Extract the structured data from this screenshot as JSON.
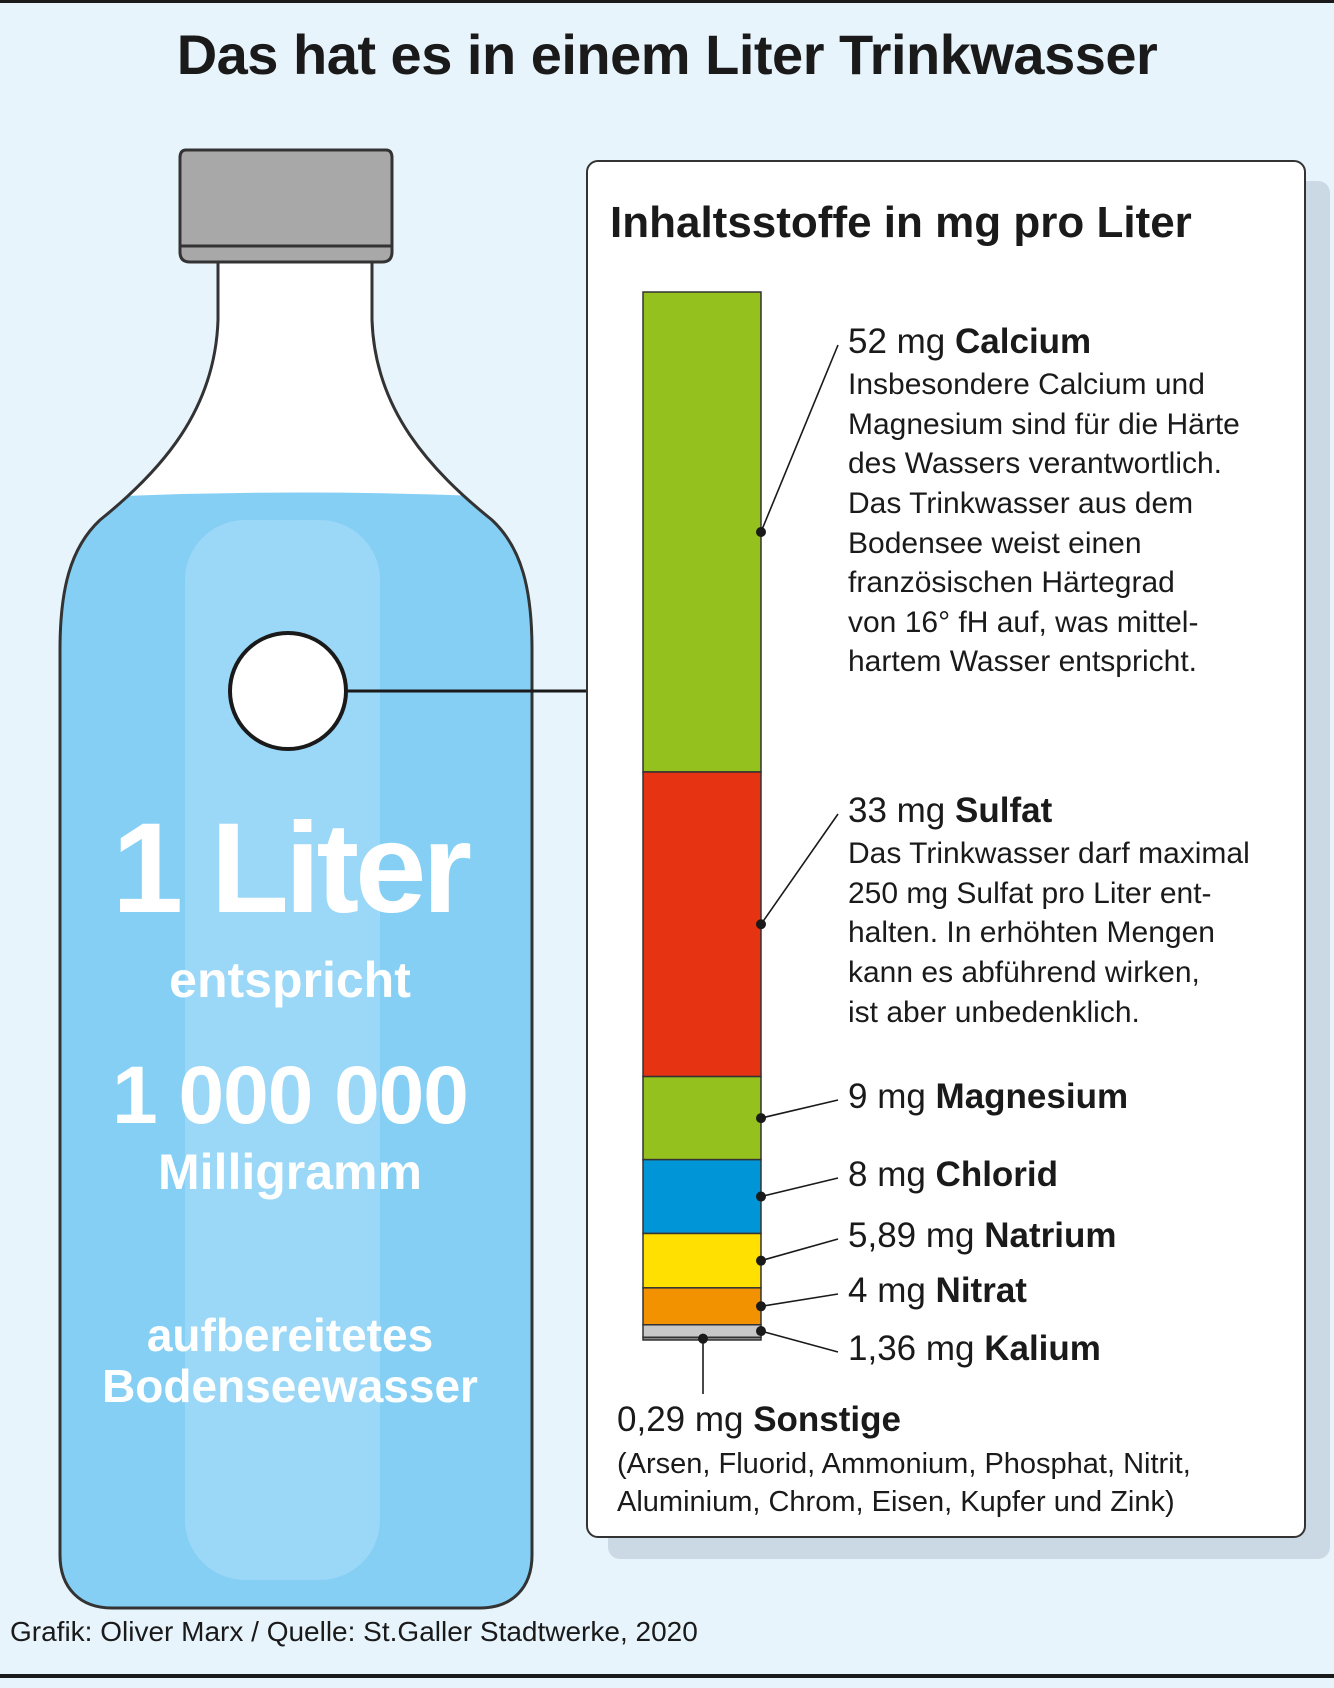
{
  "title": "Das hat es in einem Liter Trinkwasser",
  "bottle": {
    "line1": "1 Liter",
    "line2": "entspricht",
    "line3": "1 000 000",
    "line4": "Milligramm",
    "line5a": "aufbereitetes",
    "line5b": "Bodenseewasser"
  },
  "panel_title": "Inhaltsstoffe in mg pro Liter",
  "chart_data": {
    "type": "bar",
    "title": "Inhaltsstoffe in mg pro Liter",
    "stacked": true,
    "unit": "mg",
    "segments": [
      {
        "name": "Calcium",
        "value": 52,
        "label_value": "52 mg",
        "color": "#95c11f",
        "description": "Insbesondere Calcium und\nMagnesium sind für die Härte\ndes Wassers verantwortlich.\nDas Trinkwasser aus dem\nBodensee weist einen\nfranzösischen Härtegrad\nvon 16° fH auf, was mittel-\nhartem Wasser entspricht."
      },
      {
        "name": "Sulfat",
        "value": 33,
        "label_value": "33 mg",
        "color": "#e63312",
        "description": "Das Trinkwasser darf maximal\n250 mg Sulfat pro Liter ent-\nhalten. In erhöhten Mengen\nkann es abführend wirken,\nist aber unbedenklich."
      },
      {
        "name": "Magnesium",
        "value": 9,
        "label_value": "9 mg",
        "color": "#95c11f"
      },
      {
        "name": "Chlorid",
        "value": 8,
        "label_value": "8 mg",
        "color": "#0095d6"
      },
      {
        "name": "Natrium",
        "value": 5.89,
        "label_value": "5,89 mg",
        "color": "#ffe000"
      },
      {
        "name": "Nitrat",
        "value": 4,
        "label_value": "4 mg",
        "color": "#f39200"
      },
      {
        "name": "Kalium",
        "value": 1.36,
        "label_value": "1,36 mg",
        "color": "#c8c8c8"
      },
      {
        "name": "Sonstige",
        "value": 0.29,
        "label_value": "0,29 mg",
        "color": "#8c8c8c",
        "description": "(Arsen, Fluorid, Ammonium, Phosphat, Nitrit,\nAluminium, Chrom, Eisen, Kupfer und Zink)"
      }
    ]
  },
  "credit": "Grafik: Oliver Marx / Quelle: St.Galler Stadtwerke, 2020",
  "colors": {
    "background": "#e8f4fc",
    "water": "#85cff5",
    "bottle_glass": "#ffffff",
    "cap": "#a8a8a8"
  }
}
